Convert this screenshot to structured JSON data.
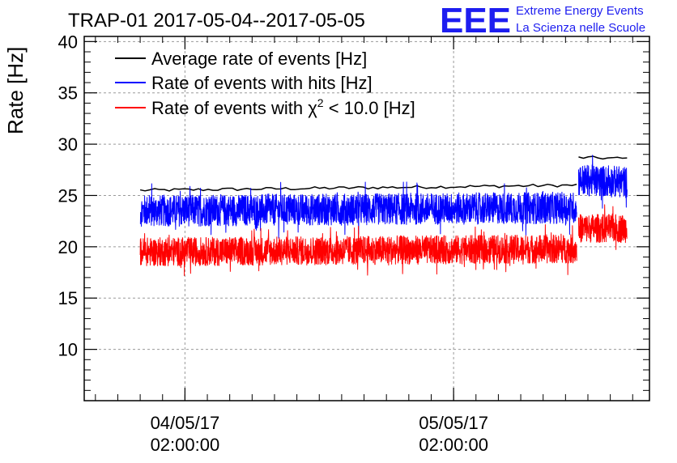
{
  "chart_data": {
    "type": "line",
    "title": "TRAP-01 2017-05-04--2017-05-05",
    "ylabel": "Rate [Hz]",
    "xlabel": "",
    "ylim": [
      5,
      40.5
    ],
    "y_ticks": [
      10,
      15,
      20,
      25,
      30,
      35,
      40
    ],
    "x_range": [
      "2017-05-03 17:00:00",
      "2017-05-05 19:30:00"
    ],
    "x_ticks": [
      {
        "date": "04/05/17",
        "time": "02:00:00",
        "x": "2017-05-04 02:00:00"
      },
      {
        "date": "05/05/17",
        "time": "02:00:00",
        "x": "2017-05-05 02:00:00"
      }
    ],
    "grid": true,
    "legend_position": "top-left",
    "logo": {
      "letters": "EEE",
      "line1": "Extreme Energy Events",
      "line2": "La Scienza nelle Scuole"
    },
    "series": [
      {
        "name": "Average rate of events [Hz]",
        "color": "#000000",
        "style": "smooth",
        "segments": [
          {
            "x_start": "2017-05-03 22:00:00",
            "x_end": "2017-05-05 13:00:00",
            "y_start": 25.5,
            "y_end": 26.0
          },
          {
            "x_start": "2017-05-05 13:10:00",
            "x_end": "2017-05-05 17:30:00",
            "y_start": 28.7,
            "y_end": 28.6
          }
        ]
      },
      {
        "name": "Rate of events with hits [Hz]",
        "color": "#0000ff",
        "style": "noisy",
        "noise_amplitude": 2.2,
        "segments": [
          {
            "x_start": "2017-05-03 22:00:00",
            "x_end": "2017-05-05 13:00:00",
            "y_start": 23.5,
            "y_end": 23.8
          },
          {
            "x_start": "2017-05-05 13:10:00",
            "x_end": "2017-05-05 17:30:00",
            "y_start": 26.5,
            "y_end": 26.3
          }
        ]
      },
      {
        "name": "Rate of events with χ² < 10.0 [Hz]",
        "name_parts": {
          "prefix": "Rate of events with ",
          "symbol": "χ",
          "sup": "2",
          "suffix": " < 10.0 [Hz]"
        },
        "color": "#ff0000",
        "style": "noisy",
        "noise_amplitude": 2.0,
        "segments": [
          {
            "x_start": "2017-05-03 22:00:00",
            "x_end": "2017-05-05 13:00:00",
            "y_start": 19.5,
            "y_end": 19.8
          },
          {
            "x_start": "2017-05-05 13:10:00",
            "x_end": "2017-05-05 17:30:00",
            "y_start": 21.8,
            "y_end": 21.8
          }
        ]
      }
    ]
  }
}
